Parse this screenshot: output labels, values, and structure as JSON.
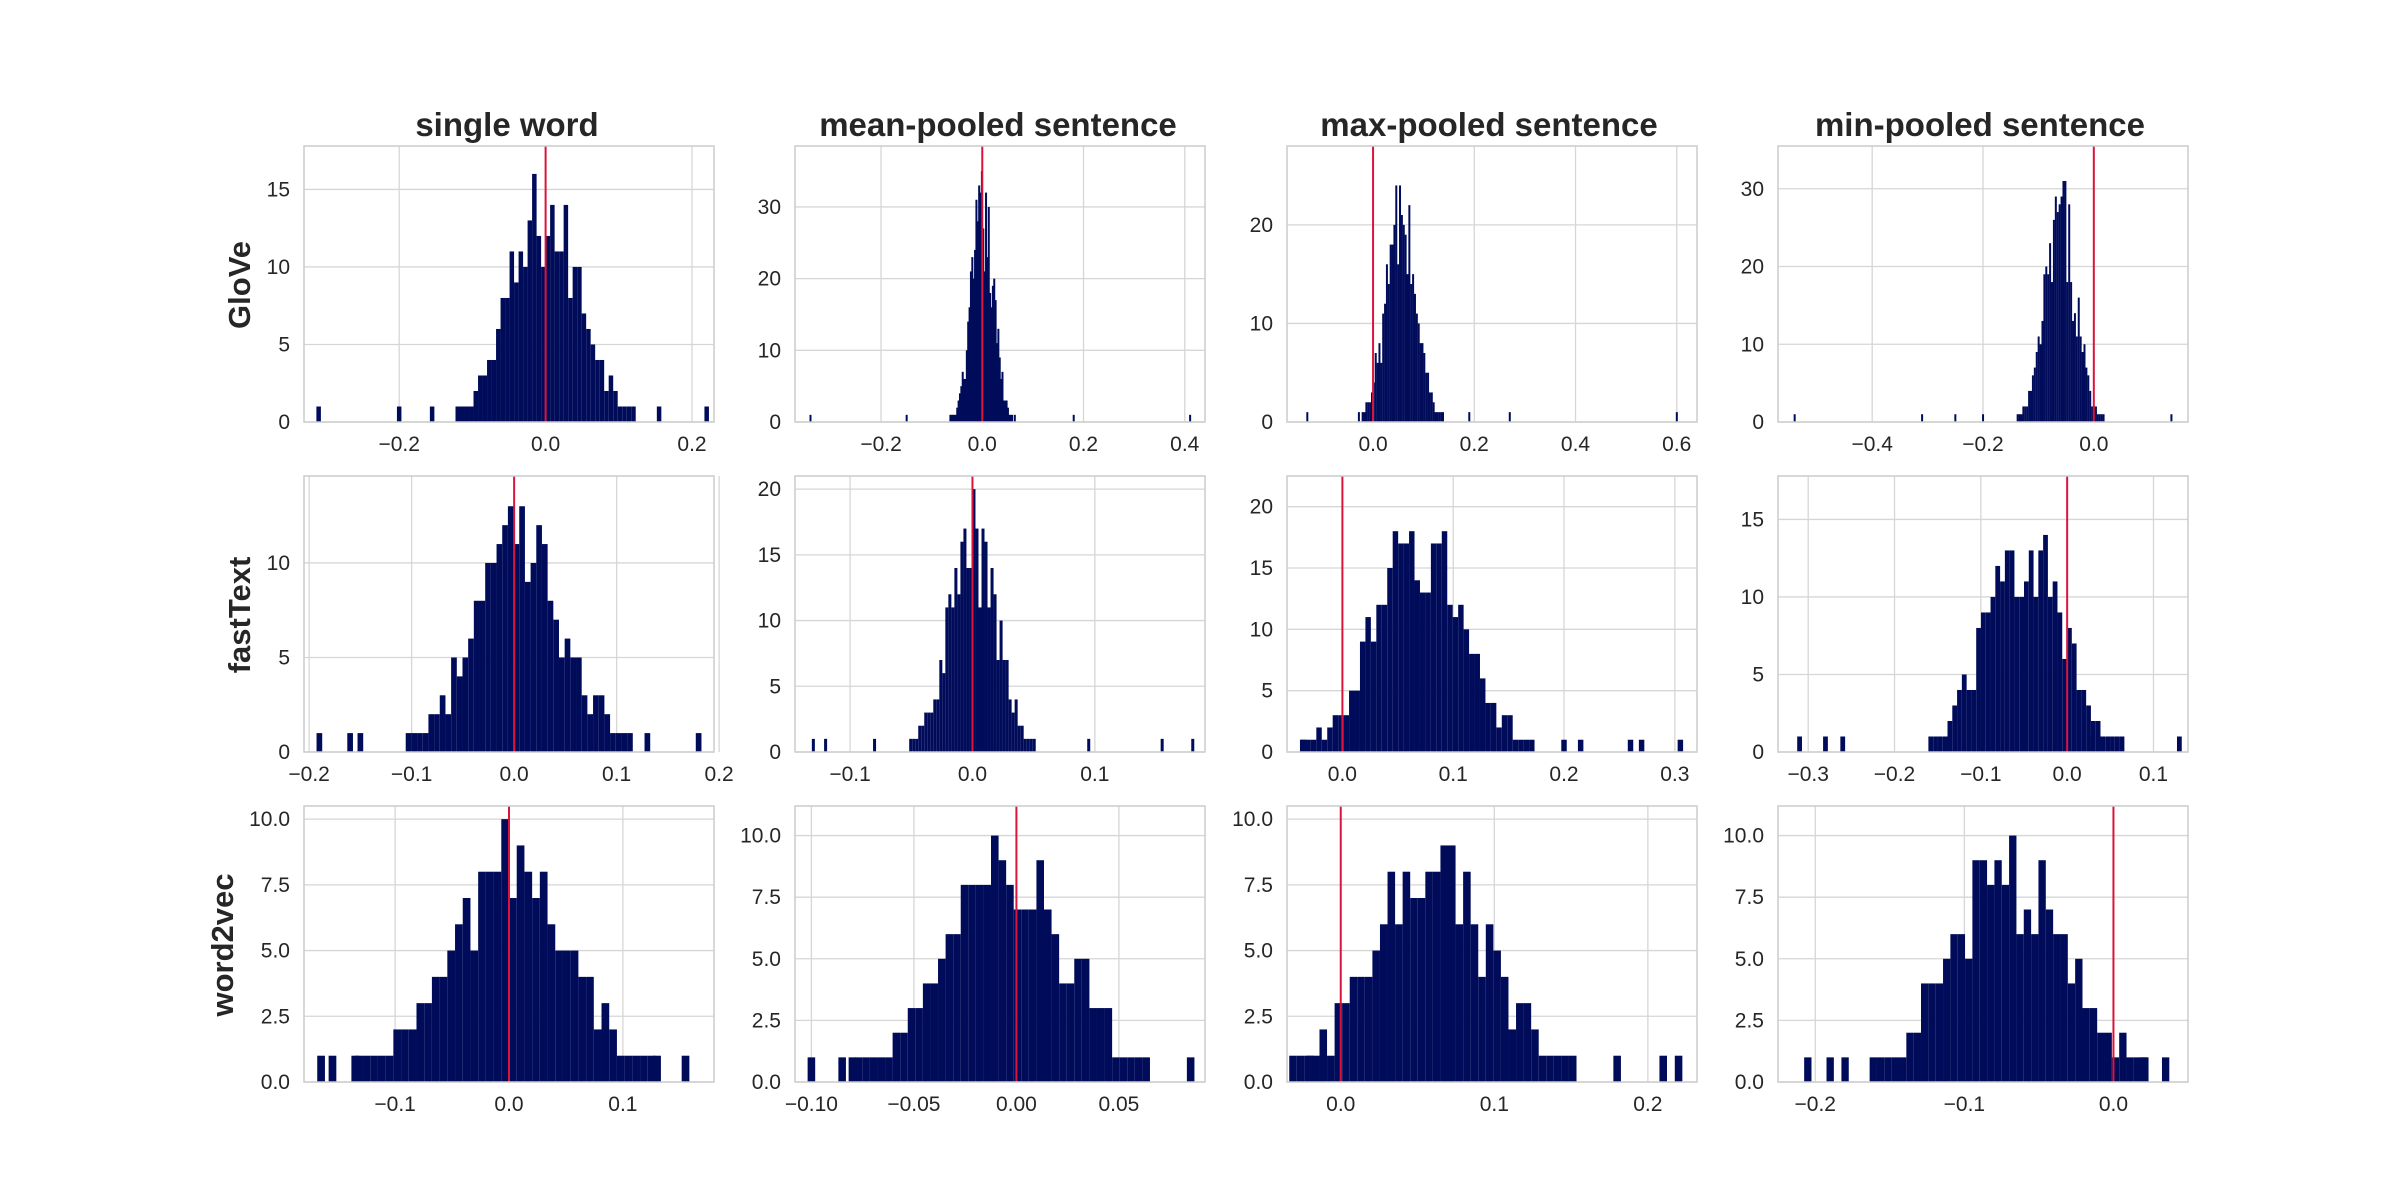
{
  "figure": {
    "column_titles": [
      "single word",
      "mean-pooled sentence",
      "max-pooled sentence",
      "min-pooled sentence"
    ],
    "row_labels": [
      "GloVe",
      "fastText",
      "word2vec"
    ],
    "colors": {
      "bars": "#000c5a",
      "reference_line": "#dc143c",
      "grid": "#d6d6d6",
      "text": "#262626"
    }
  },
  "chart_data": [
    {
      "type": "bar",
      "row": 0,
      "col": 0,
      "xlim": [
        -0.33,
        0.23
      ],
      "ylim": [
        0,
        17.8
      ],
      "xticks": [
        -0.2,
        0.0,
        0.2
      ],
      "xtick_labels": [
        "−0.2",
        "0.0",
        "0.2"
      ],
      "yticks": [
        0,
        5,
        10,
        15
      ],
      "ytick_labels": [
        "0",
        "5",
        "10",
        "15"
      ],
      "vline": 0.0,
      "center": 0.0,
      "spread": 0.05,
      "outliers": [
        [
          -0.31,
          1
        ],
        [
          -0.2,
          1
        ],
        [
          -0.155,
          1
        ],
        [
          0.155,
          1
        ],
        [
          0.22,
          1
        ]
      ]
    },
    {
      "type": "bar",
      "row": 0,
      "col": 1,
      "xlim": [
        -0.37,
        0.44
      ],
      "ylim": [
        0,
        38.5
      ],
      "xticks": [
        -0.2,
        0.0,
        0.2,
        0.4
      ],
      "xtick_labels": [
        "−0.2",
        "0.0",
        "0.2",
        "0.4"
      ],
      "yticks": [
        0,
        10,
        20,
        30
      ],
      "ytick_labels": [
        "0",
        "10",
        "20",
        "30"
      ],
      "vline": 0.0,
      "center": 0.0,
      "spread": 0.022,
      "outliers": [
        [
          -0.34,
          1
        ],
        [
          -0.15,
          1
        ],
        [
          0.18,
          1
        ],
        [
          0.41,
          1
        ]
      ]
    },
    {
      "type": "bar",
      "row": 0,
      "col": 2,
      "xlim": [
        -0.17,
        0.64
      ],
      "ylim": [
        0,
        28
      ],
      "xticks": [
        0.0,
        0.2,
        0.4,
        0.6
      ],
      "xtick_labels": [
        "0.0",
        "0.2",
        "0.4",
        "0.6"
      ],
      "yticks": [
        0,
        10,
        20
      ],
      "ytick_labels": [
        "0",
        "10",
        "20"
      ],
      "vline": 0.0,
      "center": 0.055,
      "spread": 0.03,
      "outliers": [
        [
          -0.13,
          1
        ],
        [
          0.19,
          1
        ],
        [
          0.27,
          1
        ],
        [
          0.6,
          1
        ]
      ]
    },
    {
      "type": "bar",
      "row": 0,
      "col": 3,
      "xlim": [
        -0.57,
        0.17
      ],
      "ylim": [
        0,
        35.5
      ],
      "xticks": [
        -0.4,
        -0.2,
        0.0
      ],
      "xtick_labels": [
        "−0.4",
        "−0.2",
        "0.0"
      ],
      "yticks": [
        0,
        10,
        20,
        30
      ],
      "ytick_labels": [
        "0",
        "10",
        "20",
        "30"
      ],
      "vline": 0.0,
      "center": -0.06,
      "spread": 0.028,
      "outliers": [
        [
          -0.54,
          1
        ],
        [
          -0.31,
          1
        ],
        [
          -0.25,
          1
        ],
        [
          -0.2,
          1
        ],
        [
          0.14,
          1
        ]
      ]
    },
    {
      "type": "bar",
      "row": 1,
      "col": 0,
      "xlim": [
        -0.205,
        0.195
      ],
      "ylim": [
        0,
        14.6
      ],
      "xticks": [
        -0.2,
        -0.1,
        0.0,
        0.1,
        0.2
      ],
      "xtick_labels": [
        "−0.2",
        "−0.1",
        "0.0",
        "0.1",
        "0.2"
      ],
      "yticks": [
        0,
        5,
        10
      ],
      "ytick_labels": [
        "0",
        "5",
        "10"
      ],
      "vline": 0.0,
      "center": 0.005,
      "spread": 0.045,
      "outliers": [
        [
          -0.19,
          1
        ],
        [
          -0.16,
          1
        ],
        [
          -0.15,
          1
        ],
        [
          0.13,
          1
        ],
        [
          0.18,
          1
        ]
      ]
    },
    {
      "type": "bar",
      "row": 1,
      "col": 1,
      "xlim": [
        -0.145,
        0.19
      ],
      "ylim": [
        0,
        21
      ],
      "xticks": [
        -0.1,
        0.0,
        0.1
      ],
      "xtick_labels": [
        "−0.1",
        "0.0",
        "0.1"
      ],
      "yticks": [
        0,
        5,
        10,
        15,
        20
      ],
      "ytick_labels": [
        "0",
        "5",
        "10",
        "15",
        "20"
      ],
      "vline": 0.0,
      "center": 0.0,
      "spread": 0.02,
      "outliers": [
        [
          -0.13,
          1
        ],
        [
          -0.12,
          1
        ],
        [
          -0.08,
          1
        ],
        [
          0.095,
          1
        ],
        [
          0.155,
          1
        ],
        [
          0.18,
          1
        ]
      ]
    },
    {
      "type": "bar",
      "row": 1,
      "col": 2,
      "xlim": [
        -0.05,
        0.32
      ],
      "ylim": [
        0,
        22.5
      ],
      "xticks": [
        0.0,
        0.1,
        0.2,
        0.3
      ],
      "xtick_labels": [
        "0.0",
        "0.1",
        "0.2",
        "0.3"
      ],
      "yticks": [
        0,
        5,
        10,
        15,
        20
      ],
      "ytick_labels": [
        "0",
        "5",
        "10",
        "15",
        "20"
      ],
      "vline": 0.0,
      "center": 0.07,
      "spread": 0.04,
      "outliers": [
        [
          -0.035,
          1
        ],
        [
          0.2,
          1
        ],
        [
          0.215,
          1
        ],
        [
          0.26,
          1
        ],
        [
          0.27,
          1
        ],
        [
          0.305,
          1
        ]
      ]
    },
    {
      "type": "bar",
      "row": 1,
      "col": 3,
      "xlim": [
        -0.335,
        0.14
      ],
      "ylim": [
        0,
        17.8
      ],
      "xticks": [
        -0.3,
        -0.2,
        -0.1,
        0.0,
        0.1
      ],
      "xtick_labels": [
        "−0.3",
        "−0.2",
        "−0.1",
        "0.0",
        "0.1"
      ],
      "yticks": [
        0,
        5,
        10,
        15
      ],
      "ytick_labels": [
        "0",
        "5",
        "10",
        "15"
      ],
      "vline": 0.0,
      "center": -0.05,
      "spread": 0.045,
      "outliers": [
        [
          -0.31,
          1
        ],
        [
          -0.28,
          1
        ],
        [
          -0.26,
          1
        ],
        [
          0.03,
          1
        ],
        [
          0.13,
          1
        ]
      ]
    },
    {
      "type": "bar",
      "row": 2,
      "col": 0,
      "xlim": [
        -0.18,
        0.18
      ],
      "ylim": [
        0,
        10.5
      ],
      "xticks": [
        -0.1,
        0.0,
        0.1
      ],
      "xtick_labels": [
        "−0.1",
        "0.0",
        "0.1"
      ],
      "yticks": [
        0,
        2.5,
        5,
        7.5,
        10
      ],
      "ytick_labels": [
        "0.0",
        "2.5",
        "5.0",
        "7.5",
        "10.0"
      ],
      "vline": 0.0,
      "center": 0.0,
      "spread": 0.055,
      "outliers": [
        [
          -0.165,
          1
        ],
        [
          -0.155,
          1
        ],
        [
          -0.135,
          1
        ],
        [
          0.13,
          1
        ],
        [
          0.155,
          1
        ]
      ]
    },
    {
      "type": "bar",
      "row": 2,
      "col": 1,
      "xlim": [
        -0.108,
        0.092
      ],
      "ylim": [
        0,
        11.2
      ],
      "xticks": [
        -0.1,
        -0.05,
        0.0,
        0.05
      ],
      "xtick_labels": [
        "−0.10",
        "−0.05",
        "0.00",
        "0.05"
      ],
      "yticks": [
        0,
        2.5,
        5,
        7.5,
        10
      ],
      "ytick_labels": [
        "0.0",
        "2.5",
        "5.0",
        "7.5",
        "10.0"
      ],
      "vline": 0.0,
      "center": -0.005,
      "spread": 0.03,
      "outliers": [
        [
          -0.1,
          1
        ],
        [
          -0.085,
          1
        ],
        [
          -0.08,
          1
        ],
        [
          0.085,
          1
        ]
      ]
    },
    {
      "type": "bar",
      "row": 2,
      "col": 2,
      "xlim": [
        -0.035,
        0.232
      ],
      "ylim": [
        0,
        10.5
      ],
      "xticks": [
        0.0,
        0.1,
        0.2
      ],
      "xtick_labels": [
        "0.0",
        "0.1",
        "0.2"
      ],
      "yticks": [
        0,
        2.5,
        5,
        7.5,
        10
      ],
      "ytick_labels": [
        "0.0",
        "2.5",
        "5.0",
        "7.5",
        "10.0"
      ],
      "vline": 0.0,
      "center": 0.06,
      "spread": 0.04,
      "outliers": [
        [
          -0.02,
          1
        ],
        [
          0.18,
          1
        ],
        [
          0.21,
          1
        ],
        [
          0.22,
          1
        ]
      ]
    },
    {
      "type": "bar",
      "row": 2,
      "col": 3,
      "xlim": [
        -0.225,
        0.05
      ],
      "ylim": [
        0,
        11.2
      ],
      "xticks": [
        -0.2,
        -0.1,
        0.0
      ],
      "xtick_labels": [
        "−0.2",
        "−0.1",
        "0.0"
      ],
      "yticks": [
        0,
        2.5,
        5,
        7.5,
        10
      ],
      "ytick_labels": [
        "0.0",
        "2.5",
        "5.0",
        "7.5",
        "10.0"
      ],
      "vline": 0.0,
      "center": -0.07,
      "spread": 0.04,
      "outliers": [
        [
          -0.205,
          1
        ],
        [
          -0.19,
          1
        ],
        [
          -0.18,
          1
        ],
        [
          0.02,
          1
        ],
        [
          0.035,
          1
        ]
      ]
    }
  ]
}
